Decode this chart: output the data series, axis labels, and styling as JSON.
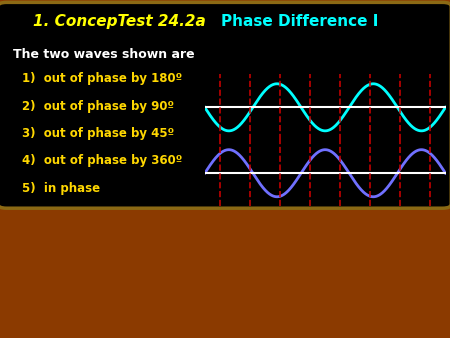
{
  "title_italic": "1. ConcepTest 24.2a",
  "title_normal": "Phase Difference I",
  "title_italic_color": "#FFFF00",
  "title_normal_color": "#00FFFF",
  "background_outer": "#8B3A00",
  "background_inner": "#000000",
  "subtitle": "The two waves shown are",
  "subtitle_color": "#FFFFFF",
  "options": [
    "1)  out of phase by 180º",
    "2)  out of phase by 90º",
    "3)  out of phase by 45º",
    "4)  out of phase by 360º",
    "5)  in phase"
  ],
  "options_color": "#FFD700",
  "wave1_color": "#00FFFF",
  "wave2_color": "#7070FF",
  "axis_color": "#FFFFFF",
  "dashed_line_color": "#CC0000",
  "border_color": "#8B6914",
  "num_dashed": 8,
  "num_cycles": 2.5
}
